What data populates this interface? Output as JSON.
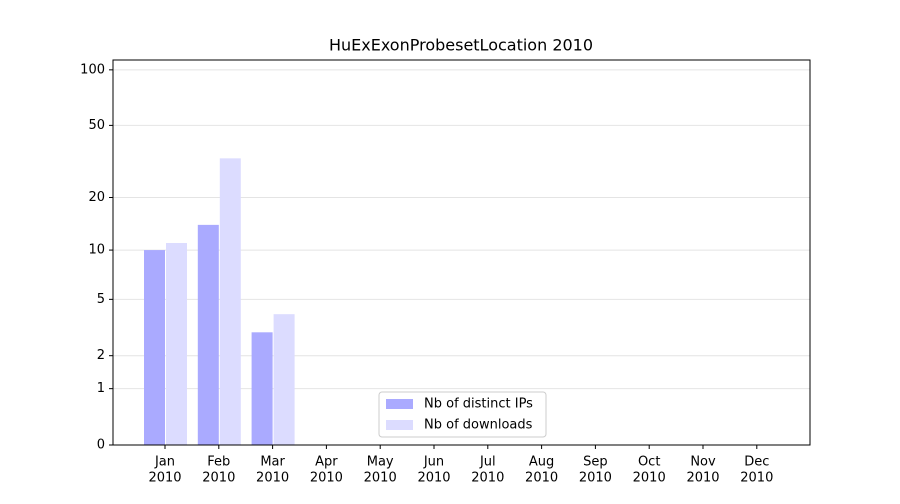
{
  "chart_data": {
    "type": "bar",
    "title": "HuExExonProbesetLocation 2010",
    "categories": [
      [
        "Jan",
        "2010"
      ],
      [
        "Feb",
        "2010"
      ],
      [
        "Mar",
        "2010"
      ],
      [
        "Apr",
        "2010"
      ],
      [
        "May",
        "2010"
      ],
      [
        "Jun",
        "2010"
      ],
      [
        "Jul",
        "2010"
      ],
      [
        "Aug",
        "2010"
      ],
      [
        "Sep",
        "2010"
      ],
      [
        "Oct",
        "2010"
      ],
      [
        "Nov",
        "2010"
      ],
      [
        "Dec",
        "2010"
      ]
    ],
    "series": [
      {
        "name": "Nb of distinct IPs",
        "color": "#aaaaff",
        "values": [
          10,
          14,
          3,
          0,
          0,
          0,
          0,
          0,
          0,
          0,
          0,
          0
        ]
      },
      {
        "name": "Nb of downloads",
        "color": "#dcdcff",
        "values": [
          11,
          33,
          4,
          0,
          0,
          0,
          0,
          0,
          0,
          0,
          0,
          0
        ]
      }
    ],
    "yscale": "log1p",
    "ylim": [
      0,
      113
    ],
    "yticks": [
      0,
      1,
      2,
      5,
      10,
      20,
      50,
      100
    ],
    "grid": true,
    "legend": "lower center"
  }
}
